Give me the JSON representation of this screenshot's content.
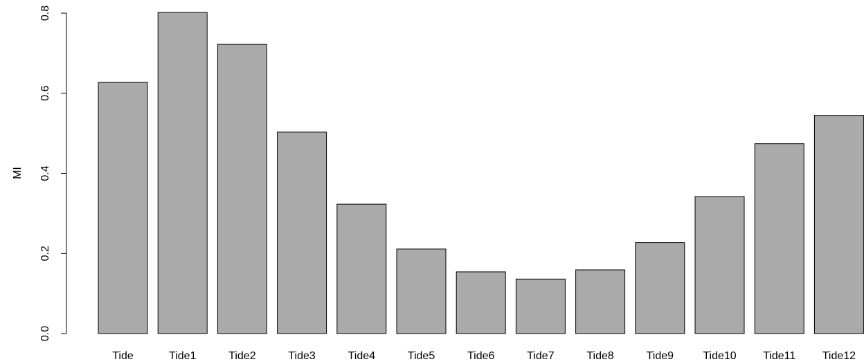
{
  "chart_data": {
    "type": "bar",
    "title": "",
    "xlabel": "",
    "ylabel": "MI",
    "categories": [
      "Tide",
      "Tide1",
      "Tide2",
      "Tide3",
      "Tide4",
      "Tide5",
      "Tide6",
      "Tide7",
      "Tide8",
      "Tide9",
      "Tide10",
      "Tide11",
      "Tide12"
    ],
    "values": [
      0.627,
      0.802,
      0.722,
      0.503,
      0.323,
      0.211,
      0.154,
      0.136,
      0.159,
      0.227,
      0.342,
      0.474,
      0.545
    ],
    "ylim": [
      0,
      0.8
    ],
    "yticks": [
      0.0,
      0.2,
      0.4,
      0.6,
      0.8
    ],
    "ytick_labels": [
      "0.0",
      "0.2",
      "0.4",
      "0.6",
      "0.8"
    ],
    "grid": false,
    "legend": "none",
    "colors": {
      "bar_fill": "#aaaaaa",
      "bar_stroke": "#000000",
      "axis": "#000000"
    }
  }
}
